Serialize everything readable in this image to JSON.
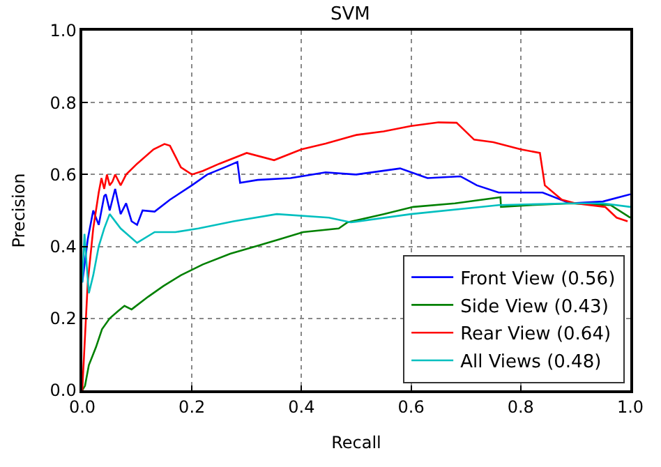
{
  "chart_data": {
    "type": "line",
    "title": "SVM",
    "xlabel": "Recall",
    "ylabel": "Precision",
    "xlim": [
      0.0,
      1.0
    ],
    "ylim": [
      0.0,
      1.0
    ],
    "xticks": [
      {
        "value": 0,
        "label": "0.0"
      },
      0.2,
      0.4,
      0.6,
      0.8,
      {
        "value": 1,
        "label": "1.0"
      }
    ],
    "yticks": [
      {
        "value": 0,
        "label": "0.0"
      },
      0.2,
      0.4,
      0.6,
      0.8,
      {
        "value": 1,
        "label": "1.0"
      }
    ],
    "grid": true,
    "legend": "bottom right",
    "line_style": "solid",
    "marker": "none",
    "series": [
      {
        "name": "Front View (0.56)",
        "color": "#0000ff",
        "x": [
          0,
          0.01,
          0.02,
          0.03,
          0.04,
          0.043,
          0.05,
          0.06,
          0.07,
          0.08,
          0.09,
          0.1,
          0.11,
          0.132,
          0.16,
          0.2,
          0.228,
          0.26,
          0.283,
          0.288,
          0.32,
          0.38,
          0.444,
          0.5,
          0.58,
          0.63,
          0.69,
          0.72,
          0.76,
          0.84,
          0.89,
          0.95,
          1.0
        ],
        "values": [
          0.3,
          0.42,
          0.5,
          0.46,
          0.54,
          0.545,
          0.5,
          0.56,
          0.49,
          0.52,
          0.47,
          0.46,
          0.5,
          0.497,
          0.53,
          0.57,
          0.6,
          0.62,
          0.635,
          0.577,
          0.585,
          0.59,
          0.606,
          0.6,
          0.617,
          0.59,
          0.595,
          0.57,
          0.55,
          0.55,
          0.52,
          0.525,
          0.545
        ]
      },
      {
        "name": "Side View (0.43)",
        "color": "#008000",
        "x": [
          0,
          0.005,
          0.012,
          0.025,
          0.036,
          0.05,
          0.065,
          0.077,
          0.09,
          0.12,
          0.148,
          0.18,
          0.22,
          0.27,
          0.316,
          0.36,
          0.403,
          0.468,
          0.484,
          0.55,
          0.604,
          0.68,
          0.763,
          0.764,
          0.82,
          0.89,
          0.964,
          1.0
        ],
        "values": [
          0,
          0.013,
          0.07,
          0.12,
          0.17,
          0.2,
          0.22,
          0.235,
          0.225,
          0.26,
          0.29,
          0.32,
          0.35,
          0.38,
          0.4,
          0.42,
          0.44,
          0.45,
          0.467,
          0.49,
          0.51,
          0.52,
          0.537,
          0.51,
          0.515,
          0.52,
          0.515,
          0.48
        ]
      },
      {
        "name": "Rear View (0.64)",
        "color": "#ff0000",
        "x": [
          0,
          0.01,
          0.02,
          0.03,
          0.035,
          0.04,
          0.045,
          0.05,
          0.055,
          0.06,
          0.07,
          0.08,
          0.1,
          0.13,
          0.15,
          0.16,
          0.18,
          0.2,
          0.22,
          0.25,
          0.3,
          0.35,
          0.4,
          0.444,
          0.5,
          0.55,
          0.6,
          0.65,
          0.683,
          0.715,
          0.75,
          0.8,
          0.835,
          0.844,
          0.875,
          0.9,
          0.954,
          0.975,
          0.995
        ],
        "values": [
          0,
          0.3,
          0.45,
          0.55,
          0.59,
          0.56,
          0.6,
          0.57,
          0.58,
          0.6,
          0.57,
          0.6,
          0.63,
          0.67,
          0.685,
          0.68,
          0.62,
          0.6,
          0.61,
          0.63,
          0.66,
          0.64,
          0.67,
          0.686,
          0.71,
          0.72,
          0.735,
          0.745,
          0.744,
          0.697,
          0.69,
          0.67,
          0.66,
          0.57,
          0.53,
          0.52,
          0.51,
          0.48,
          0.47
        ]
      },
      {
        "name": "All Views (0.48)",
        "color": "#00bfbf",
        "x": [
          0,
          0.004,
          0.008,
          0.012,
          0.02,
          0.03,
          0.04,
          0.05,
          0.07,
          0.1,
          0.132,
          0.17,
          0.212,
          0.276,
          0.355,
          0.45,
          0.49,
          0.6,
          0.76,
          0.89,
          0.95,
          1.0
        ],
        "values": [
          0.3,
          0.435,
          0.35,
          0.27,
          0.32,
          0.4,
          0.45,
          0.49,
          0.45,
          0.41,
          0.44,
          0.44,
          0.45,
          0.47,
          0.49,
          0.48,
          0.467,
          0.49,
          0.515,
          0.52,
          0.52,
          0.51
        ]
      }
    ]
  }
}
